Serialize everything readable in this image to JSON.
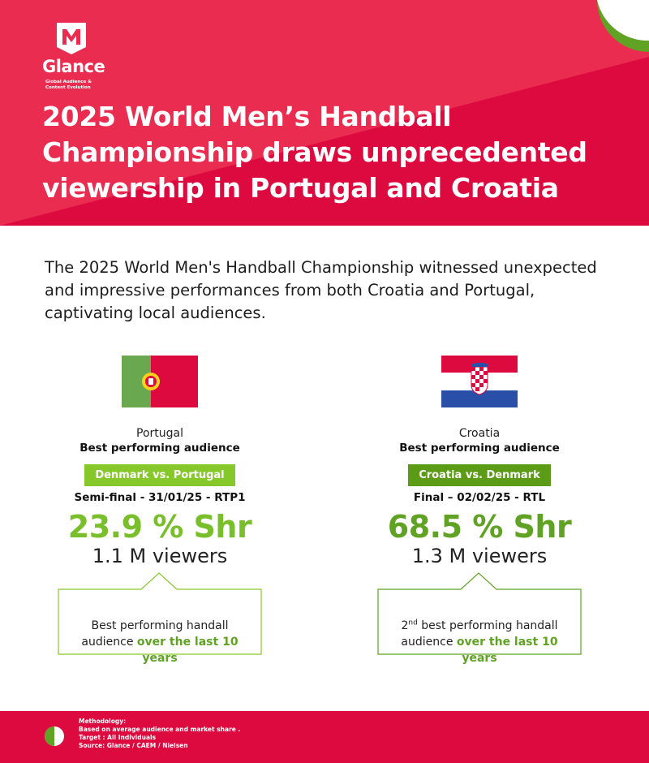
{
  "brand": {
    "name": "Glance",
    "tagline_line1": "Global Audience &",
    "tagline_line2": "Content Evolution",
    "colors": {
      "primary_red": "#dd0a3f",
      "light_red": "#ea2c50",
      "green": "#79bf2b",
      "dark_green": "#5b9b16"
    }
  },
  "header": {
    "title": "2025 World Men’s Handball Championship draws unprecedented viewership in Portugal and Croatia"
  },
  "intro": "The 2025 World Men's Handball Championship witnessed unexpected and impressive performances from both Croatia and Portugal, captivating local audiences.",
  "portugal": {
    "flag_icon": "portugal-flag-icon",
    "country": "Portugal",
    "best_label": "Best performing audience",
    "match": "Denmark vs. Portugal",
    "match_info": "Semi-final - 31/01/25 - RTP1",
    "share": "23.9 % Shr",
    "viewers": "1.1 M viewers",
    "note_text": "Best performing handall audience",
    "note_highlight": "over the last 10 years"
  },
  "croatia": {
    "flag_icon": "croatia-flag-icon",
    "country": "Croatia",
    "best_label": "Best performing audience",
    "match": "Croatia vs. Denmark",
    "match_info": "Final – 02/02/25 - RTL",
    "share": "68.5 % Shr",
    "viewers": "1.3 M viewers",
    "note_rank": "2",
    "note_rank_suffix": "nd",
    "note_text": "best performing handall audience",
    "note_highlight": "over the last 10 years"
  },
  "footer": {
    "methodology_label": "Methodology:",
    "line1": "Based on average audience and market share .",
    "line2": "Target : All Individuals",
    "line3": "Source: Glance / CAEM / Nielsen"
  }
}
